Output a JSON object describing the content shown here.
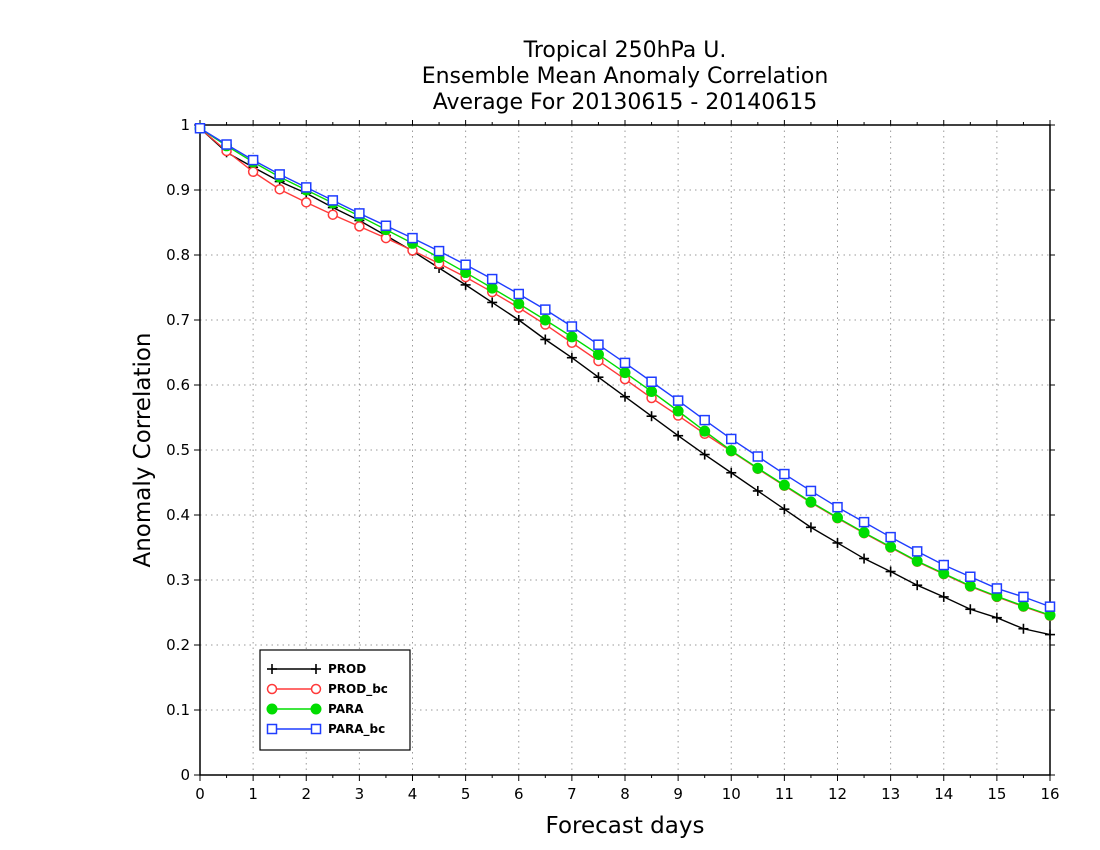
{
  "chart_data": {
    "type": "line",
    "title": [
      "Tropical 250hPa U.",
      "Ensemble Mean Anomaly Correlation",
      "Average For 20130615 - 20140615"
    ],
    "xlabel": "Forecast days",
    "ylabel": "Anomaly Correlation",
    "xlim": [
      0,
      16
    ],
    "ylim": [
      0,
      1
    ],
    "x_ticks": [
      "0",
      "1",
      "2",
      "3",
      "4",
      "5",
      "6",
      "7",
      "8",
      "9",
      "10",
      "11",
      "12",
      "13",
      "14",
      "15",
      "16"
    ],
    "y_ticks": [
      "0",
      "0.1",
      "0.2",
      "0.3",
      "0.4",
      "0.5",
      "0.6",
      "0.7",
      "0.8",
      "0.9",
      "1"
    ],
    "grid": true,
    "legend_position": "bottom-left",
    "x": [
      0,
      0.5,
      1,
      1.5,
      2,
      2.5,
      3,
      3.5,
      4,
      4.5,
      5,
      5.5,
      6,
      6.5,
      7,
      7.5,
      8,
      8.5,
      9,
      9.5,
      10,
      10.5,
      11,
      11.5,
      12,
      12.5,
      13,
      13.5,
      14,
      14.5,
      15,
      15.5,
      16
    ],
    "series": [
      {
        "name": "PROD",
        "color": "#000000",
        "marker": "plus",
        "values": [
          0.995,
          0.958,
          0.935,
          0.913,
          0.895,
          0.873,
          0.853,
          0.83,
          0.806,
          0.78,
          0.754,
          0.727,
          0.7,
          0.67,
          0.642,
          0.612,
          0.582,
          0.552,
          0.522,
          0.493,
          0.465,
          0.437,
          0.409,
          0.381,
          0.357,
          0.333,
          0.313,
          0.292,
          0.274,
          0.255,
          0.242,
          0.225,
          0.216
        ]
      },
      {
        "name": "PROD_bc",
        "color": "#ff3a3a",
        "marker": "open-circle",
        "values": [
          0.995,
          0.96,
          0.928,
          0.901,
          0.881,
          0.862,
          0.844,
          0.826,
          0.807,
          0.787,
          0.766,
          0.743,
          0.719,
          0.693,
          0.665,
          0.637,
          0.609,
          0.58,
          0.553,
          0.525,
          0.498,
          0.471,
          0.445,
          0.419,
          0.395,
          0.372,
          0.35,
          0.328,
          0.309,
          0.29,
          0.274,
          0.259,
          0.245
        ]
      },
      {
        "name": "PARA",
        "color": "#00dd00",
        "marker": "filled-circle",
        "values": [
          0.995,
          0.968,
          0.943,
          0.92,
          0.9,
          0.88,
          0.86,
          0.839,
          0.818,
          0.796,
          0.773,
          0.749,
          0.725,
          0.7,
          0.674,
          0.647,
          0.619,
          0.59,
          0.56,
          0.529,
          0.499,
          0.472,
          0.446,
          0.42,
          0.396,
          0.373,
          0.351,
          0.329,
          0.31,
          0.291,
          0.275,
          0.26,
          0.246
        ]
      },
      {
        "name": "PARA_bc",
        "color": "#1f3dff",
        "marker": "open-square",
        "values": [
          0.995,
          0.97,
          0.946,
          0.924,
          0.904,
          0.884,
          0.864,
          0.845,
          0.826,
          0.806,
          0.785,
          0.763,
          0.74,
          0.716,
          0.69,
          0.662,
          0.634,
          0.605,
          0.576,
          0.546,
          0.517,
          0.49,
          0.463,
          0.437,
          0.412,
          0.389,
          0.366,
          0.344,
          0.323,
          0.305,
          0.287,
          0.274,
          0.259
        ]
      }
    ]
  }
}
